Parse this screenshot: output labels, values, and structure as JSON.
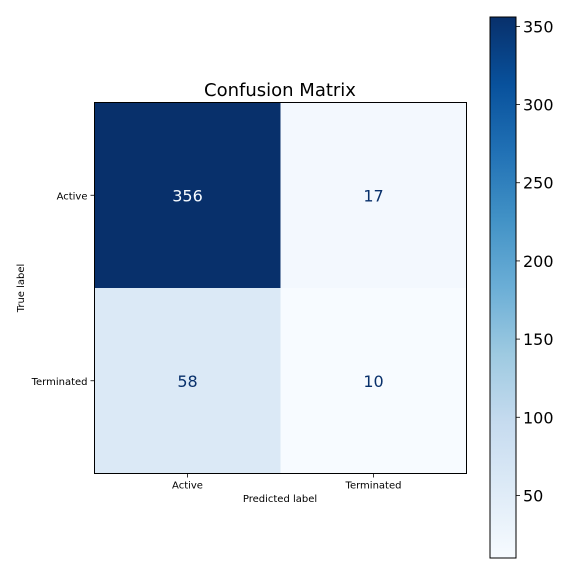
{
  "chart_data": {
    "type": "heatmap",
    "title": "Confusion Matrix",
    "xlabel": "Predicted label",
    "ylabel": "True label",
    "x_categories": [
      "Active",
      "Terminated"
    ],
    "y_categories": [
      "Active",
      "Terminated"
    ],
    "values": [
      [
        356,
        17
      ],
      [
        58,
        10
      ]
    ],
    "colormap": "Blues",
    "colorbar": {
      "range": [
        10,
        356
      ],
      "ticks": [
        50,
        100,
        150,
        200,
        250,
        300,
        350
      ]
    },
    "grid": false
  }
}
